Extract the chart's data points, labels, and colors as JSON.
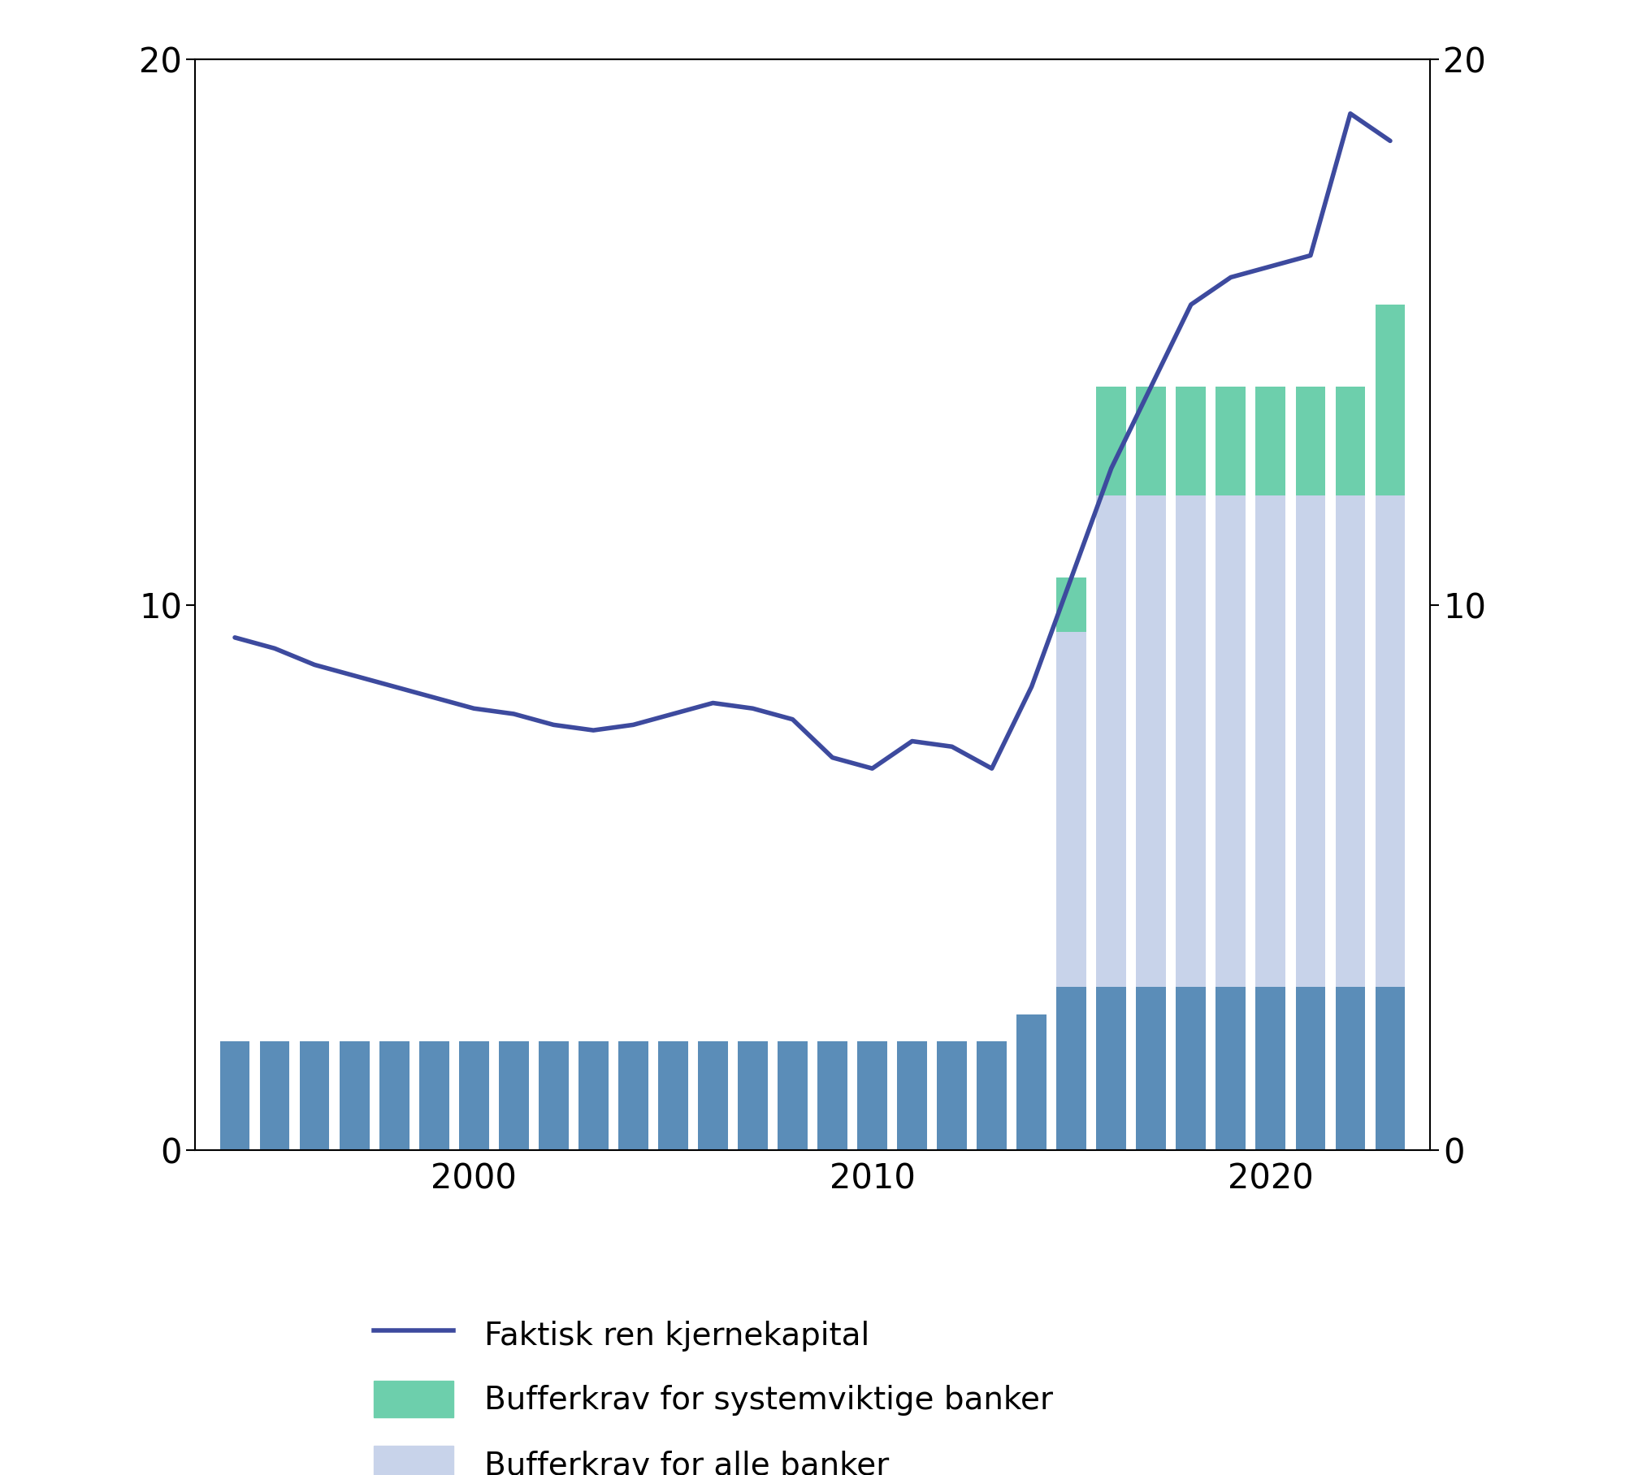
{
  "line_years": [
    1994,
    1995,
    1996,
    1997,
    1998,
    1999,
    2000,
    2001,
    2002,
    2003,
    2004,
    2005,
    2006,
    2007,
    2008,
    2009,
    2010,
    2011,
    2012,
    2013,
    2014,
    2015,
    2016,
    2017,
    2018,
    2019,
    2020,
    2021,
    2022,
    2023
  ],
  "line_values": [
    9.4,
    9.2,
    8.9,
    8.7,
    8.5,
    8.3,
    8.1,
    8.0,
    7.8,
    7.7,
    7.8,
    8.0,
    8.2,
    8.1,
    7.9,
    7.2,
    7.0,
    7.5,
    7.4,
    7.0,
    8.5,
    10.5,
    12.5,
    14.0,
    15.5,
    16.0,
    16.2,
    16.4,
    19.0,
    18.5
  ],
  "bar_years": [
    1994,
    1995,
    1996,
    1997,
    1998,
    1999,
    2000,
    2001,
    2002,
    2003,
    2004,
    2005,
    2006,
    2007,
    2008,
    2009,
    2010,
    2011,
    2012,
    2013,
    2014,
    2015,
    2016,
    2017,
    2018,
    2019,
    2020,
    2021,
    2022,
    2023
  ],
  "min_requirement": [
    2.0,
    2.0,
    2.0,
    2.0,
    2.0,
    2.0,
    2.0,
    2.0,
    2.0,
    2.0,
    2.0,
    2.0,
    2.0,
    2.0,
    2.0,
    2.0,
    2.0,
    2.0,
    2.0,
    2.0,
    2.5,
    3.0,
    3.0,
    3.0,
    3.0,
    3.0,
    3.0,
    3.0,
    3.0,
    3.0
  ],
  "buffer_all": [
    0.0,
    0.0,
    0.0,
    0.0,
    0.0,
    0.0,
    0.0,
    0.0,
    0.0,
    0.0,
    0.0,
    0.0,
    0.0,
    0.0,
    0.0,
    0.0,
    0.0,
    0.0,
    0.0,
    0.0,
    0.0,
    6.5,
    9.0,
    9.0,
    9.0,
    9.0,
    9.0,
    9.0,
    9.0,
    9.0
  ],
  "buffer_systemic": [
    0.0,
    0.0,
    0.0,
    0.0,
    0.0,
    0.0,
    0.0,
    0.0,
    0.0,
    0.0,
    0.0,
    0.0,
    0.0,
    0.0,
    0.0,
    0.0,
    0.0,
    0.0,
    0.0,
    0.0,
    0.0,
    1.0,
    2.0,
    2.0,
    2.0,
    2.0,
    2.0,
    2.0,
    2.0,
    3.5
  ],
  "line_color": "#3d4a9e",
  "bar_min_color": "#5b8db8",
  "bar_all_color": "#c8d3ea",
  "bar_systemic_color": "#6dcfac",
  "legend_line_label": "Faktisk ren kjernekapital",
  "legend_systemic_label": "Bufferkrav for systemviktige banker",
  "legend_all_label": "Bufferkrav for alle banker",
  "ylim": [
    0,
    20
  ],
  "yticks": [
    0,
    10,
    20
  ],
  "xlim": [
    1993.0,
    2024.0
  ],
  "xticks": [
    2000,
    2010,
    2020
  ],
  "background_color": "#ffffff",
  "line_width": 4.0,
  "bar_width": 0.75
}
